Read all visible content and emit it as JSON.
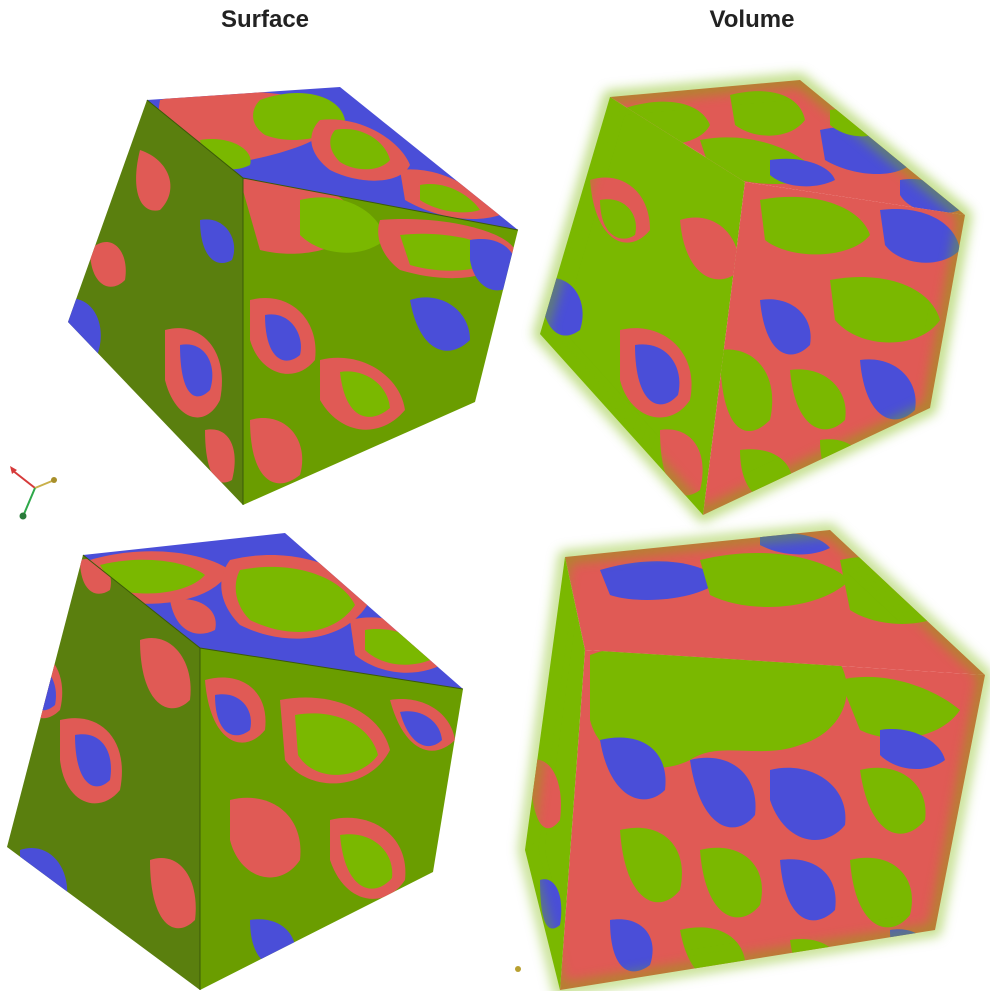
{
  "titles": {
    "surface": "Surface",
    "volume": "Volume"
  },
  "colors": {
    "background": "#ffffff",
    "phase_green": "#7ab800",
    "phase_green_dark": "#4e7a0a",
    "phase_red": "#e05a55",
    "phase_blue": "#4a4ed8"
  },
  "renders": [
    {
      "label": "",
      "style": "surface",
      "row": 1
    },
    {
      "label": "",
      "style": "volume",
      "row": 1
    },
    {
      "label": "",
      "style": "surface",
      "row": 2
    },
    {
      "label": "",
      "style": "volume",
      "row": 2
    }
  ],
  "axis_widget": {
    "icons": [
      "x-axis-arrow-icon",
      "y-axis-arrow-icon",
      "z-axis-arrow-icon"
    ]
  }
}
